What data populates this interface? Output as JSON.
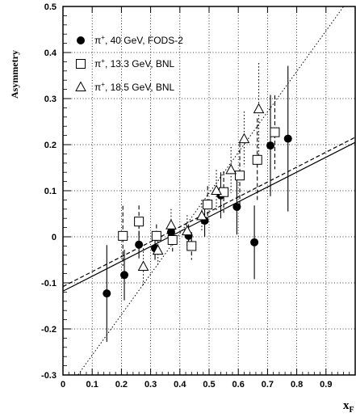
{
  "chart_data": {
    "type": "scatter",
    "title": "",
    "xlabel": "x",
    "xlabel_subscript": "F",
    "ylabel": "Asymmetry",
    "xlim": [
      0,
      1
    ],
    "ylim": [
      -0.3,
      0.5
    ],
    "x_ticks": [
      "0",
      "0.1",
      "0.2",
      "0.3",
      "0.4",
      "0.5",
      "0.6",
      "0.7",
      "0.8",
      "0.9"
    ],
    "y_ticks": [
      "-0.3",
      "-0.2",
      "-0.1",
      "0",
      "0.1",
      "0.2",
      "0.3",
      "0.4",
      "0.5"
    ],
    "grid": true,
    "legend_position": "top-left",
    "series": [
      {
        "name": "π+, 40 GeV, FODS-2",
        "marker": "filled-circle",
        "error_style": "solid",
        "points": [
          {
            "x": 0.15,
            "y": -0.123,
            "err": 0.105
          },
          {
            "x": 0.21,
            "y": -0.083,
            "err": 0.055
          },
          {
            "x": 0.26,
            "y": -0.017,
            "err": 0.03
          },
          {
            "x": 0.315,
            "y": -0.025,
            "err": 0.025
          },
          {
            "x": 0.37,
            "y": 0.01,
            "err": 0.02
          },
          {
            "x": 0.43,
            "y": 0.002,
            "err": 0.025
          },
          {
            "x": 0.485,
            "y": 0.035,
            "err": 0.035
          },
          {
            "x": 0.54,
            "y": 0.09,
            "err": 0.05
          },
          {
            "x": 0.595,
            "y": 0.065,
            "err": 0.06
          },
          {
            "x": 0.655,
            "y": -0.012,
            "err": 0.08
          },
          {
            "x": 0.71,
            "y": 0.198,
            "err": 0.11
          },
          {
            "x": 0.77,
            "y": 0.213,
            "err": 0.158
          }
        ]
      },
      {
        "name": "π+, 13.3 GeV, BNL",
        "marker": "open-square",
        "error_style": "dashed",
        "points": [
          {
            "x": 0.205,
            "y": 0.002,
            "err": 0.065
          },
          {
            "x": 0.26,
            "y": 0.033,
            "err": 0.035
          },
          {
            "x": 0.32,
            "y": 0.002,
            "err": 0.025
          },
          {
            "x": 0.375,
            "y": -0.007,
            "err": 0.025
          },
          {
            "x": 0.44,
            "y": -0.02,
            "err": 0.03
          },
          {
            "x": 0.495,
            "y": 0.07,
            "err": 0.04
          },
          {
            "x": 0.55,
            "y": 0.097,
            "err": 0.045
          },
          {
            "x": 0.605,
            "y": 0.133,
            "err": 0.07
          },
          {
            "x": 0.665,
            "y": 0.167,
            "err": 0.09
          },
          {
            "x": 0.725,
            "y": 0.227,
            "err": 0.08
          }
        ]
      },
      {
        "name": "π+, 18.5 GeV, BNL",
        "marker": "open-triangle",
        "error_style": "dotted",
        "points": [
          {
            "x": 0.275,
            "y": -0.065,
            "err": 0.04
          },
          {
            "x": 0.325,
            "y": -0.03,
            "err": 0.035
          },
          {
            "x": 0.37,
            "y": 0.025,
            "err": 0.035
          },
          {
            "x": 0.425,
            "y": 0.012,
            "err": 0.035
          },
          {
            "x": 0.475,
            "y": 0.045,
            "err": 0.035
          },
          {
            "x": 0.525,
            "y": 0.1,
            "err": 0.045
          },
          {
            "x": 0.575,
            "y": 0.145,
            "err": 0.05
          },
          {
            "x": 0.62,
            "y": 0.212,
            "err": 0.06
          },
          {
            "x": 0.67,
            "y": 0.277,
            "err": 0.1
          }
        ]
      }
    ],
    "fit_lines": [
      {
        "style": "solid",
        "points": [
          [
            0,
            -0.118
          ],
          [
            1,
            0.205
          ]
        ]
      },
      {
        "style": "dashed",
        "points": [
          [
            0,
            -0.108
          ],
          [
            1,
            0.216
          ]
        ]
      },
      {
        "style": "dotted",
        "points": [
          [
            0,
            -0.345
          ],
          [
            1,
            0.535
          ]
        ]
      }
    ]
  }
}
